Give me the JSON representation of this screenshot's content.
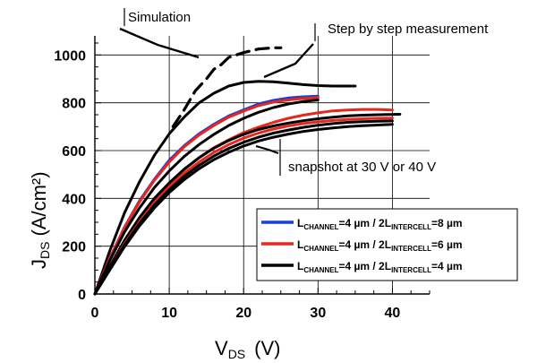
{
  "chart_data": {
    "type": "line",
    "xlabel": {
      "main": "V",
      "sub": "DS",
      "unit": "(V)"
    },
    "ylabel": {
      "main": "J",
      "sub": "DS",
      "unit": "(A/cm²)"
    },
    "xlim": [
      0,
      45
    ],
    "ylim": [
      0,
      1080
    ],
    "xticks": [
      "0",
      "10",
      "20",
      "30",
      "40"
    ],
    "yticks": [
      "0",
      "200",
      "400",
      "600",
      "800",
      "1000"
    ],
    "grid": true,
    "annotations": {
      "simulation": "Simulation",
      "step": "Step by step measurement",
      "snapshot": "snapshot at 30 V or 40 V"
    },
    "legend": {
      "placement": "bottom-right",
      "entries": [
        {
          "color": "#1a3fd8",
          "l": "L",
          "lsub": "CHANNEL",
          "mid": "=4 µm / 2L",
          "isub": "INTERCELL",
          "tail": "=8 µm"
        },
        {
          "color": "#e8261c",
          "l": "L",
          "lsub": "CHANNEL",
          "mid": "=4 µm / 2L",
          "isub": "INTERCELL",
          "tail": "=6 µm"
        },
        {
          "color": "#000000",
          "l": "L",
          "lsub": "CHANNEL",
          "mid": "=4 µm / 2L",
          "isub": "INTERCELL",
          "tail": "=4 µm"
        }
      ]
    },
    "series": [
      {
        "color": "#000000",
        "dash": true,
        "x": [
          10.5,
          12,
          13.5,
          15,
          16,
          17,
          18,
          20,
          22,
          24,
          25
        ],
        "y": [
          700,
          770,
          850,
          900,
          940,
          960,
          990,
          1010,
          1025,
          1030,
          1030
        ]
      },
      {
        "color": "#000000",
        "dash": false,
        "x": [
          0,
          2,
          4,
          6,
          8,
          10,
          12,
          14,
          16,
          18,
          20,
          22,
          24,
          26,
          28,
          30,
          32,
          35
        ],
        "y": [
          0,
          180,
          340,
          470,
          580,
          670,
          740,
          800,
          840,
          870,
          885,
          890,
          888,
          882,
          876,
          872,
          870,
          870
        ]
      },
      {
        "color": "#1a3fd8",
        "dash": false,
        "x": [
          0,
          2,
          4,
          6,
          8,
          10,
          12,
          14,
          16,
          18,
          20,
          22,
          24,
          26,
          28,
          30
        ],
        "y": [
          0,
          150,
          280,
          390,
          480,
          560,
          620,
          670,
          710,
          745,
          770,
          795,
          810,
          820,
          825,
          828
        ]
      },
      {
        "color": "#e8261c",
        "dash": false,
        "x": [
          0,
          2,
          4,
          6,
          8,
          10,
          12,
          14,
          16,
          18,
          20,
          22,
          24,
          26,
          28,
          30
        ],
        "y": [
          0,
          150,
          278,
          385,
          475,
          552,
          615,
          665,
          705,
          740,
          765,
          788,
          803,
          812,
          818,
          822
        ]
      },
      {
        "color": "#000000",
        "dash": false,
        "x": [
          0,
          2,
          4,
          6,
          8,
          10,
          12,
          14,
          16,
          18,
          20,
          22,
          24,
          26,
          28,
          30
        ],
        "y": [
          0,
          140,
          260,
          360,
          445,
          515,
          575,
          625,
          668,
          705,
          735,
          760,
          780,
          795,
          805,
          812
        ]
      },
      {
        "color": "#e8261c",
        "dash": false,
        "x": [
          0,
          2,
          4,
          6,
          8,
          10,
          12,
          14,
          16,
          18,
          20,
          22,
          24,
          26,
          28,
          30,
          32,
          34,
          36,
          38,
          40
        ],
        "y": [
          0,
          110,
          220,
          315,
          395,
          460,
          520,
          570,
          612,
          645,
          675,
          698,
          718,
          735,
          748,
          758,
          766,
          770,
          772,
          772,
          770
        ]
      },
      {
        "color": "#000000",
        "dash": false,
        "x": [
          0,
          2,
          4,
          6,
          8,
          10,
          12,
          14,
          16,
          18,
          20,
          22,
          24,
          26,
          28,
          30,
          32,
          34,
          36,
          38,
          41
        ],
        "y": [
          0,
          115,
          225,
          320,
          400,
          465,
          522,
          570,
          610,
          642,
          668,
          688,
          703,
          715,
          725,
          733,
          740,
          745,
          748,
          750,
          752
        ]
      },
      {
        "color": "#e8261c",
        "dash": false,
        "x": [
          0,
          2,
          4,
          6,
          8,
          10,
          12,
          14,
          16,
          18,
          20,
          22,
          24,
          26,
          28,
          30,
          32,
          34,
          36,
          38,
          40
        ],
        "y": [
          0,
          105,
          210,
          302,
          382,
          448,
          505,
          552,
          592,
          625,
          652,
          673,
          690,
          703,
          713,
          720,
          726,
          730,
          733,
          735,
          736
        ]
      },
      {
        "color": "#000000",
        "dash": false,
        "x": [
          0,
          2,
          4,
          6,
          8,
          10,
          12,
          14,
          16,
          18,
          20,
          22,
          24,
          26,
          28,
          30,
          32,
          34,
          36,
          38,
          40
        ],
        "y": [
          0,
          105,
          205,
          295,
          372,
          436,
          492,
          538,
          577,
          609,
          635,
          656,
          673,
          686,
          697,
          706,
          713,
          718,
          721,
          723,
          724
        ]
      },
      {
        "color": "#000000",
        "dash": false,
        "x": [
          0,
          2,
          4,
          6,
          8,
          10,
          12,
          14,
          16,
          18,
          20,
          22,
          24,
          26,
          28,
          30,
          32,
          34,
          36,
          38,
          40
        ],
        "y": [
          0,
          100,
          198,
          285,
          360,
          424,
          478,
          524,
          562,
          593,
          619,
          640,
          656,
          669,
          680,
          688,
          695,
          700,
          704,
          707,
          710
        ]
      }
    ]
  }
}
